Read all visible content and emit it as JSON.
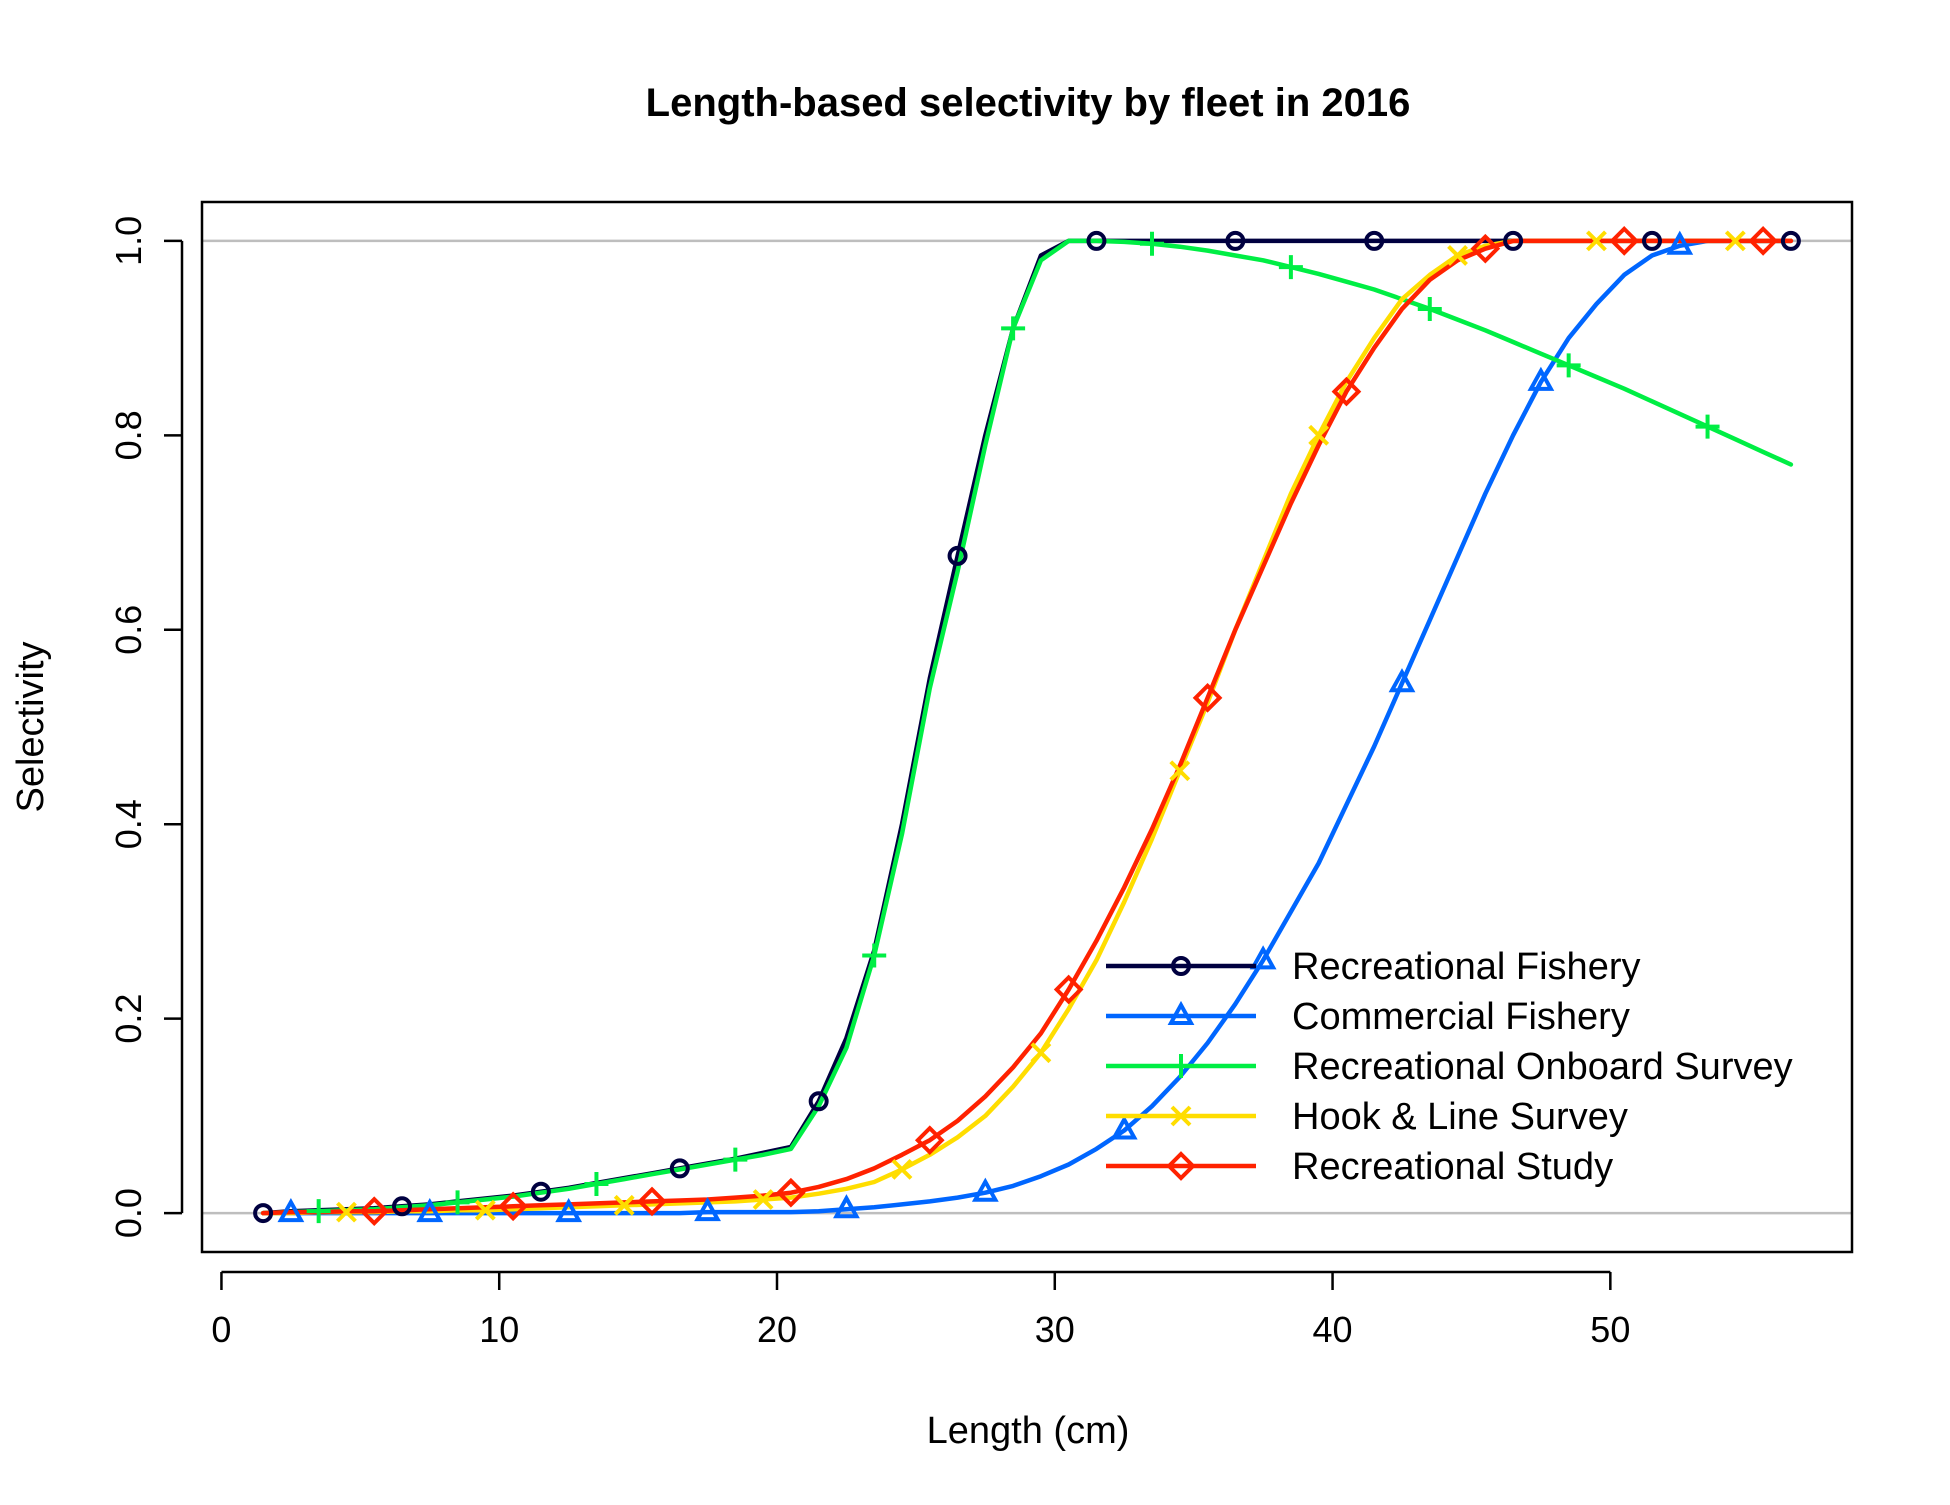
{
  "chart_data": {
    "type": "line",
    "title": "Length-based selectivity by fleet in 2016",
    "xlabel": "Length (cm)",
    "ylabel": "Selectivity",
    "xlim": [
      -0.7,
      58.7
    ],
    "ylim": [
      -0.04,
      1.04
    ],
    "xticks": [
      0,
      10,
      20,
      30,
      40,
      50
    ],
    "xtick_labels": [
      "0",
      "10",
      "20",
      "30",
      "40",
      "50"
    ],
    "yticks": [
      0.0,
      0.2,
      0.4,
      0.6,
      0.8,
      1.0
    ],
    "ytick_labels": [
      "0.0",
      "0.2",
      "0.4",
      "0.6",
      "0.8",
      "1.0"
    ],
    "reference_lines": [
      0,
      1
    ],
    "reference_line_color": "#bebebe",
    "grid": false,
    "legend_position": "bottom-right",
    "x": [
      1.5,
      2.5,
      3.5,
      4.5,
      5.5,
      6.5,
      7.5,
      8.5,
      9.5,
      10.5,
      11.5,
      12.5,
      13.5,
      14.5,
      15.5,
      16.5,
      17.5,
      18.5,
      19.5,
      20.5,
      21.5,
      22.5,
      23.5,
      24.5,
      25.5,
      26.5,
      27.5,
      28.5,
      29.5,
      30.5,
      31.5,
      32.5,
      33.5,
      34.5,
      35.5,
      36.5,
      37.5,
      38.5,
      39.5,
      40.5,
      41.5,
      42.5,
      43.5,
      44.5,
      45.5,
      46.5,
      47.5,
      48.5,
      49.5,
      50.5,
      51.5,
      52.5,
      53.5,
      54.5,
      55.5,
      56.5
    ],
    "series": [
      {
        "name": "Recreational Fishery",
        "color": "#000040",
        "marker": "circle",
        "values": [
          0.0,
          0.002,
          0.003,
          0.004,
          0.005,
          0.007,
          0.009,
          0.012,
          0.015,
          0.018,
          0.022,
          0.026,
          0.031,
          0.036,
          0.041,
          0.046,
          0.051,
          0.056,
          0.062,
          0.068,
          0.115,
          0.18,
          0.27,
          0.4,
          0.55,
          0.676,
          0.8,
          0.91,
          0.985,
          1.0,
          1.0,
          1.0,
          1.0,
          1.0,
          1.0,
          1.0,
          1.0,
          1.0,
          1.0,
          1.0,
          1.0,
          1.0,
          1.0,
          1.0,
          1.0,
          1.0,
          1.0,
          1.0,
          1.0,
          1.0,
          1.0,
          1.0,
          1.0,
          1.0,
          1.0,
          1.0
        ]
      },
      {
        "name": "Commercial Fishery",
        "color": "#0066ff",
        "marker": "triangle",
        "values": [
          0.0,
          0.0,
          0.0,
          0.0,
          0.0,
          0.0,
          0.0,
          0.0,
          0.0,
          0.0,
          0.0,
          0.0,
          0.0,
          0.0,
          0.0,
          0.0,
          0.001,
          0.001,
          0.001,
          0.001,
          0.002,
          0.004,
          0.006,
          0.009,
          0.012,
          0.016,
          0.021,
          0.028,
          0.038,
          0.05,
          0.066,
          0.085,
          0.11,
          0.14,
          0.175,
          0.215,
          0.26,
          0.31,
          0.36,
          0.42,
          0.48,
          0.545,
          0.61,
          0.675,
          0.74,
          0.8,
          0.855,
          0.9,
          0.935,
          0.965,
          0.985,
          0.995,
          1.0,
          1.0,
          1.0,
          1.0
        ]
      },
      {
        "name": "Recreational Onboard Survey",
        "color": "#00ee44",
        "marker": "plus",
        "values": [
          0.0,
          0.001,
          0.002,
          0.003,
          0.004,
          0.006,
          0.008,
          0.011,
          0.014,
          0.017,
          0.021,
          0.025,
          0.03,
          0.035,
          0.04,
          0.045,
          0.05,
          0.055,
          0.06,
          0.066,
          0.11,
          0.17,
          0.265,
          0.39,
          0.54,
          0.66,
          0.79,
          0.91,
          0.98,
          1.0,
          1.0,
          0.999,
          0.997,
          0.994,
          0.99,
          0.985,
          0.98,
          0.973,
          0.966,
          0.958,
          0.95,
          0.94,
          0.93,
          0.919,
          0.908,
          0.896,
          0.884,
          0.872,
          0.86,
          0.848,
          0.835,
          0.822,
          0.809,
          0.796,
          0.783,
          0.77
        ]
      },
      {
        "name": "Hook & Line Survey",
        "color": "#ffdd00",
        "marker": "x",
        "values": [
          0.0,
          0.0,
          0.001,
          0.001,
          0.001,
          0.002,
          0.002,
          0.003,
          0.003,
          0.004,
          0.005,
          0.006,
          0.007,
          0.008,
          0.009,
          0.01,
          0.011,
          0.012,
          0.014,
          0.016,
          0.02,
          0.025,
          0.032,
          0.045,
          0.06,
          0.078,
          0.1,
          0.13,
          0.165,
          0.21,
          0.26,
          0.32,
          0.385,
          0.455,
          0.525,
          0.6,
          0.67,
          0.74,
          0.8,
          0.855,
          0.9,
          0.94,
          0.965,
          0.985,
          0.995,
          1.0,
          1.0,
          1.0,
          1.0,
          1.0,
          1.0,
          1.0,
          1.0,
          1.0,
          1.0,
          1.0
        ]
      },
      {
        "name": "Recreational Study",
        "color": "#ff2200",
        "marker": "diamond",
        "values": [
          0.0,
          0.001,
          0.001,
          0.002,
          0.002,
          0.003,
          0.004,
          0.005,
          0.006,
          0.007,
          0.008,
          0.009,
          0.01,
          0.011,
          0.012,
          0.013,
          0.014,
          0.016,
          0.018,
          0.021,
          0.027,
          0.035,
          0.046,
          0.06,
          0.075,
          0.095,
          0.12,
          0.15,
          0.185,
          0.23,
          0.28,
          0.335,
          0.395,
          0.46,
          0.53,
          0.6,
          0.665,
          0.73,
          0.79,
          0.845,
          0.89,
          0.93,
          0.96,
          0.98,
          0.992,
          1.0,
          1.0,
          1.0,
          1.0,
          1.0,
          1.0,
          1.0,
          1.0,
          1.0,
          1.0,
          1.0
        ]
      }
    ],
    "markers_at": [
      [
        1.5,
        6.5,
        11.5,
        16.5,
        21.5,
        26.5,
        31.5,
        36.5,
        41.5,
        46.5,
        51.5,
        56.5
      ],
      [
        2.5,
        7.5,
        12.5,
        17.5,
        22.5,
        27.5,
        32.5,
        37.5,
        42.5,
        47.5,
        52.5
      ],
      [
        3.5,
        8.5,
        13.5,
        18.5,
        23.5,
        28.5,
        33.5,
        38.5,
        43.5,
        48.5,
        53.5
      ],
      [
        4.5,
        9.5,
        14.5,
        19.5,
        24.5,
        29.5,
        34.5,
        39.5,
        44.5,
        49.5,
        54.5
      ],
      [
        5.5,
        10.5,
        15.5,
        20.5,
        25.5,
        30.5,
        35.5,
        40.5,
        45.5,
        50.5,
        55.5
      ]
    ]
  }
}
